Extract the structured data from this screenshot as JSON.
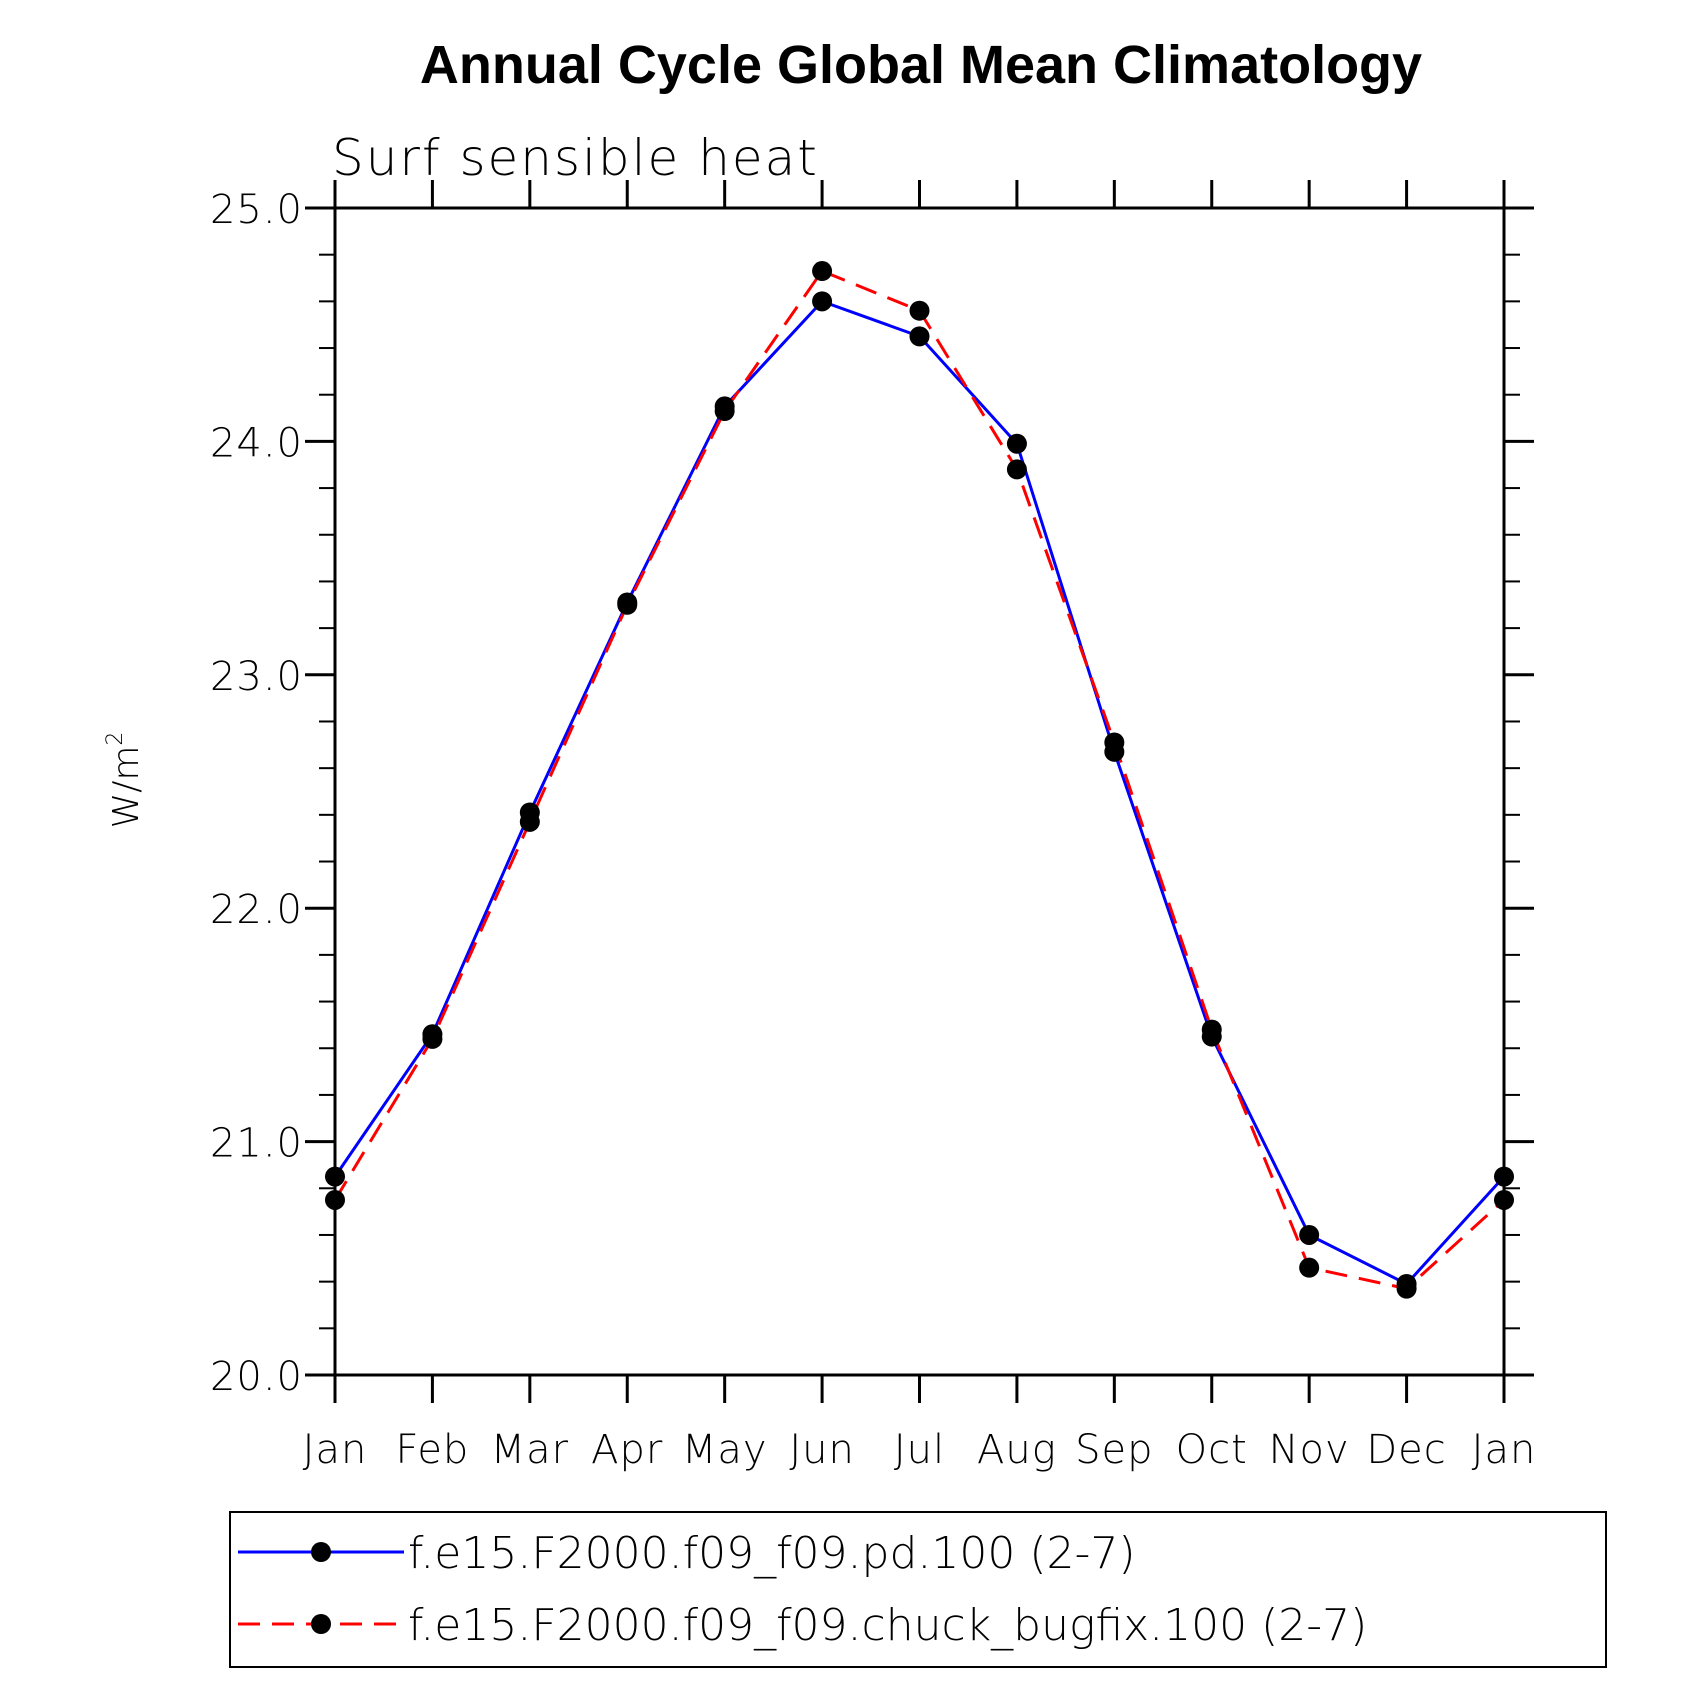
{
  "chart_data": {
    "type": "line",
    "title": "Annual Cycle Global Mean Climatology",
    "subtitle": "Surf sensible heat",
    "ylabel": "W/m",
    "ylabel_sup": "2",
    "xlabel": "",
    "categories": [
      "Jan",
      "Feb",
      "Mar",
      "Apr",
      "May",
      "Jun",
      "Jul",
      "Aug",
      "Sep",
      "Oct",
      "Nov",
      "Dec",
      "Jan"
    ],
    "ylim": [
      20.0,
      25.0
    ],
    "yticks": [
      20.0,
      21.0,
      22.0,
      23.0,
      24.0,
      25.0
    ],
    "ytick_labels": [
      "20.0",
      "21.0",
      "22.0",
      "23.0",
      "24.0",
      "25.0"
    ],
    "grid": false,
    "legend_position": "bottom",
    "series": [
      {
        "name": "f.e15.F2000.f09_f09.pd.100 (2-7)",
        "color": "#0000ff",
        "dash": "solid",
        "values": [
          20.85,
          21.46,
          22.41,
          23.31,
          24.15,
          24.6,
          24.45,
          23.99,
          22.67,
          21.45,
          20.6,
          20.39,
          20.85
        ]
      },
      {
        "name": "f.e15.F2000.f09_f09.chuck_bugfix.100 (2-7)",
        "color": "#ff0000",
        "dash": "dashed",
        "values": [
          20.75,
          21.44,
          22.37,
          23.3,
          24.13,
          24.73,
          24.56,
          23.88,
          22.71,
          21.48,
          20.46,
          20.37,
          20.75
        ]
      }
    ]
  }
}
